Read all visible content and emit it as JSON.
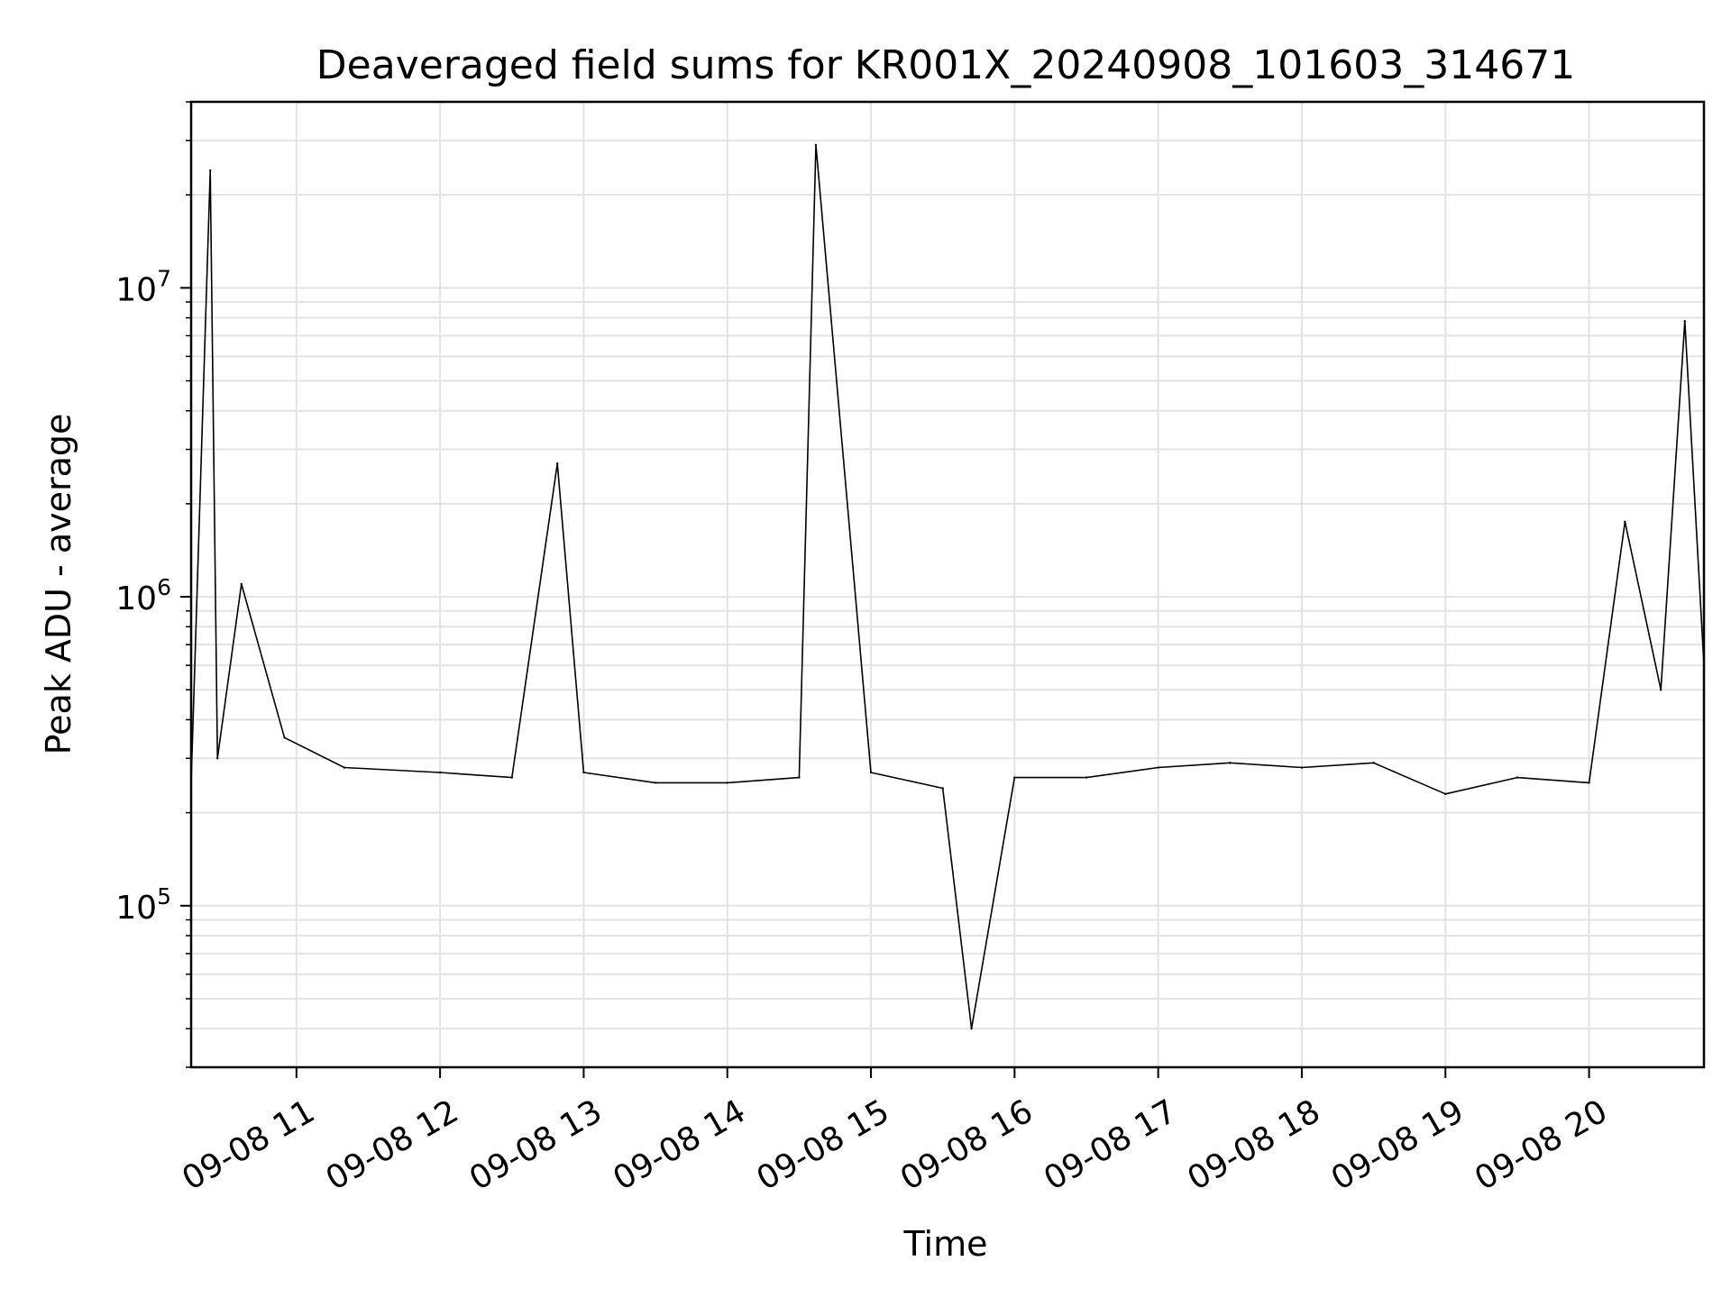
{
  "chart_data": {
    "type": "line",
    "title": "Deaveraged field sums for KR001X_20240908_101603_314671",
    "xlabel": "Time",
    "ylabel": "Peak ADU - average",
    "yscale": "log",
    "xlim": [
      "2024-09-08 10:16",
      "2024-09-08 20:48"
    ],
    "ylim": [
      30000,
      40000000
    ],
    "grid": true,
    "line_color": "#000000",
    "x_ticks": [
      {
        "value": "2024-09-08 11:00",
        "label": "09-08 11"
      },
      {
        "value": "2024-09-08 12:00",
        "label": "09-08 12"
      },
      {
        "value": "2024-09-08 13:00",
        "label": "09-08 13"
      },
      {
        "value": "2024-09-08 14:00",
        "label": "09-08 14"
      },
      {
        "value": "2024-09-08 15:00",
        "label": "09-08 15"
      },
      {
        "value": "2024-09-08 16:00",
        "label": "09-08 16"
      },
      {
        "value": "2024-09-08 17:00",
        "label": "09-08 17"
      },
      {
        "value": "2024-09-08 18:00",
        "label": "09-08 18"
      },
      {
        "value": "2024-09-08 19:00",
        "label": "09-08 19"
      },
      {
        "value": "2024-09-08 20:00",
        "label": "09-08 20"
      }
    ],
    "y_ticks": [
      {
        "value": 100000,
        "base": "10",
        "exp": "5"
      },
      {
        "value": 1000000,
        "base": "10",
        "exp": "6"
      },
      {
        "value": 10000000,
        "base": "10",
        "exp": "7"
      }
    ],
    "series": [
      {
        "x": [
          "2024-09-08 10:16",
          "2024-09-08 10:24",
          "2024-09-08 10:27",
          "2024-09-08 10:37",
          "2024-09-08 10:55",
          "2024-09-08 11:20",
          "2024-09-08 12:00",
          "2024-09-08 12:30",
          "2024-09-08 12:49",
          "2024-09-08 13:00",
          "2024-09-08 13:30",
          "2024-09-08 14:00",
          "2024-09-08 14:30",
          "2024-09-08 14:37",
          "2024-09-08 15:00",
          "2024-09-08 15:30",
          "2024-09-08 15:42",
          "2024-09-08 16:00",
          "2024-09-08 16:30",
          "2024-09-08 17:00",
          "2024-09-08 17:30",
          "2024-09-08 18:00",
          "2024-09-08 18:30",
          "2024-09-08 19:00",
          "2024-09-08 19:30",
          "2024-09-08 20:00",
          "2024-09-08 20:15",
          "2024-09-08 20:30",
          "2024-09-08 20:40",
          "2024-09-08 20:48"
        ],
        "y": [
          250000,
          24000000,
          300000,
          1100000,
          350000,
          280000,
          270000,
          260000,
          2700000,
          270000,
          250000,
          250000,
          260000,
          29000000,
          270000,
          240000,
          40000,
          260000,
          260000,
          280000,
          290000,
          280000,
          290000,
          230000,
          260000,
          250000,
          1750000,
          500000,
          7800000,
          600000
        ]
      }
    ]
  }
}
